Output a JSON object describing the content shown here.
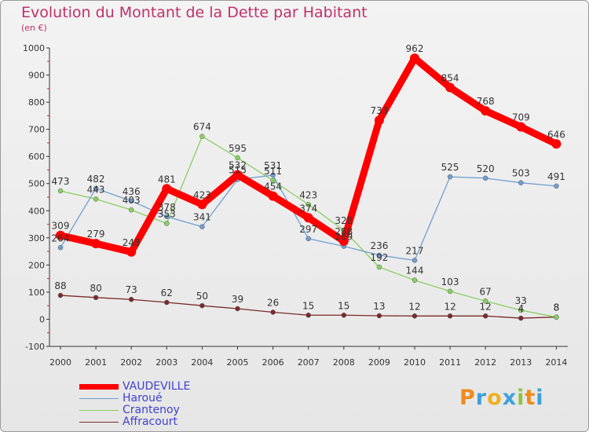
{
  "chart_data": {
    "type": "line",
    "title": "Evolution du Montant de la Dette par Habitant",
    "subtitle": "(en €)",
    "xlabel": "",
    "ylabel": "",
    "categories": [
      "2000",
      "2001",
      "2002",
      "2003",
      "2004",
      "2005",
      "2006",
      "2007",
      "2008",
      "2009",
      "2010",
      "2011",
      "2012",
      "2013",
      "2014"
    ],
    "ylim": [
      -100,
      1000
    ],
    "yticks": [
      -100,
      0,
      100,
      200,
      300,
      400,
      500,
      600,
      700,
      800,
      900,
      1000
    ],
    "grid": false,
    "legend_position": "bottom-left",
    "series": [
      {
        "name": "VAUDEVILLE",
        "color": "#ff0000",
        "values": [
          309,
          279,
          248,
          481,
          423,
          532,
          454,
          374,
          288,
          733,
          962,
          854,
          768,
          709,
          646
        ]
      },
      {
        "name": "Haroué",
        "color": "#6f9fcf",
        "values": [
          264,
          482,
          436,
          378,
          341,
          515,
          531,
          297,
          269,
          236,
          217,
          525,
          520,
          503,
          491
        ]
      },
      {
        "name": "Crantenoy",
        "color": "#88d060",
        "values": [
          473,
          443,
          403,
          353,
          674,
          595,
          511,
          423,
          328,
          192,
          144,
          103,
          67,
          33,
          8
        ]
      },
      {
        "name": "Affracourt",
        "color": "#7a2a2a",
        "values": [
          88,
          80,
          73,
          62,
          50,
          39,
          26,
          15,
          15,
          13,
          12,
          12,
          12,
          4,
          8
        ]
      }
    ],
    "point_labels": [
      {
        "series": 0,
        "labels": [
          "309",
          "279",
          "248",
          "481",
          "423",
          "532",
          "454",
          "374",
          "288",
          "733",
          "962",
          "854",
          "768",
          "709",
          "646"
        ]
      },
      {
        "series": 1,
        "labels": [
          "264",
          "482",
          "436",
          "378",
          "341",
          "515",
          "531",
          "297",
          "269",
          "236",
          "217",
          "525",
          "520",
          "503",
          "491"
        ]
      },
      {
        "series": 2,
        "labels": [
          "473",
          "443",
          "403",
          "353",
          "674",
          "595",
          "511",
          "423",
          "328",
          "192",
          "144",
          "103",
          "67",
          "33",
          "8"
        ]
      },
      {
        "series": 3,
        "labels": [
          "88",
          "80",
          "73",
          "62",
          "50",
          "39",
          "26",
          "15",
          "15",
          "13",
          "12",
          "12",
          "12",
          "4",
          "8"
        ]
      }
    ]
  },
  "logo": {
    "letters": [
      "P",
      "r",
      "o",
      "x",
      "i",
      "t",
      "i"
    ]
  }
}
